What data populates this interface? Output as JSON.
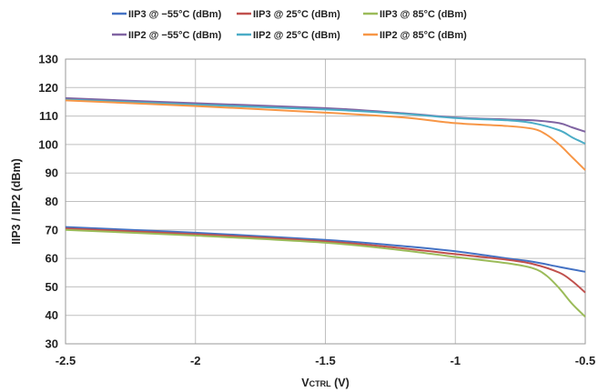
{
  "chart_data": {
    "type": "line",
    "xlabel": "VCTRL (V)",
    "xlabel_main": "V",
    "xlabel_sub": "CTRL",
    "xlabel_unit": " (V)",
    "ylabel": "IIP3 / IIP2 (dBm)",
    "xlim": [
      -2.5,
      -0.5
    ],
    "ylim": [
      30,
      130
    ],
    "xticks": [
      -2.5,
      -2,
      -1.5,
      -1,
      -0.5
    ],
    "xtick_labels": [
      "-2.5",
      "-2",
      "-1.5",
      "-1",
      "-0.5"
    ],
    "yticks": [
      30,
      40,
      50,
      60,
      70,
      80,
      90,
      100,
      110,
      120,
      130
    ],
    "ytick_labels": [
      "30",
      "40",
      "50",
      "60",
      "70",
      "80",
      "90",
      "100",
      "110",
      "120",
      "130"
    ],
    "grid": true,
    "legend_position": "top",
    "series": [
      {
        "name": "IIP3 @ −55°C (dBm)",
        "color": "#4472C4",
        "x": [
          -2.5,
          -2.0,
          -1.5,
          -1.2,
          -1.0,
          -0.8,
          -0.7,
          -0.6,
          -0.5
        ],
        "y": [
          71,
          69,
          66.5,
          64.3,
          62.5,
          60,
          58.8,
          57,
          55.3
        ]
      },
      {
        "name": "IIP3 @ 25°C (dBm)",
        "color": "#C0504D",
        "x": [
          -2.5,
          -2.0,
          -1.5,
          -1.2,
          -1.0,
          -0.8,
          -0.7,
          -0.6,
          -0.55,
          -0.5
        ],
        "y": [
          70.5,
          68.5,
          66,
          63.5,
          61.5,
          59.5,
          58,
          55,
          52,
          48
        ]
      },
      {
        "name": "IIP3 @ 85°C (dBm)",
        "color": "#9BBB59",
        "x": [
          -2.5,
          -2.0,
          -1.5,
          -1.2,
          -1.0,
          -0.8,
          -0.7,
          -0.65,
          -0.6,
          -0.55,
          -0.5
        ],
        "y": [
          70,
          68,
          65.5,
          62.8,
          60.5,
          58.3,
          56.5,
          54,
          49.5,
          44,
          39.5
        ]
      },
      {
        "name": "IIP2 @ −55°C (dBm)",
        "color": "#8064A2",
        "x": [
          -2.5,
          -2.0,
          -1.5,
          -1.2,
          -1.0,
          -0.8,
          -0.7,
          -0.6,
          -0.55,
          -0.5
        ],
        "y": [
          116.3,
          114.5,
          112.8,
          111,
          109.5,
          108.8,
          108.5,
          107.5,
          106,
          104.5
        ]
      },
      {
        "name": "IIP2 @ 25°C (dBm)",
        "color": "#4BACC6",
        "x": [
          -2.5,
          -2.0,
          -1.5,
          -1.2,
          -1.0,
          -0.8,
          -0.7,
          -0.6,
          -0.55,
          -0.5
        ],
        "y": [
          115.8,
          114,
          112.3,
          110.8,
          109.3,
          108.5,
          107.5,
          105,
          102.5,
          100.3
        ]
      },
      {
        "name": "IIP2 @ 85°C (dBm)",
        "color": "#F79646",
        "x": [
          -2.5,
          -2.0,
          -1.5,
          -1.2,
          -1.0,
          -0.8,
          -0.7,
          -0.65,
          -0.6,
          -0.55,
          -0.5
        ],
        "y": [
          115.5,
          113.5,
          111.2,
          109.5,
          107.5,
          106.5,
          105.5,
          103.5,
          100,
          95.5,
          91
        ]
      }
    ]
  }
}
